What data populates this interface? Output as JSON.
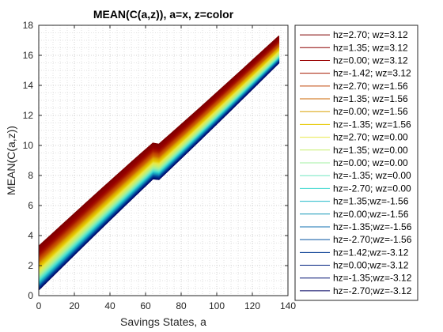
{
  "chart_data": {
    "type": "line",
    "title": "MEAN(C(a,z)), a=x, z=color",
    "xlabel": "Savings States, a",
    "ylabel": "MEAN(C(a,z))",
    "xlim": [
      0,
      140
    ],
    "ylim": [
      0,
      18
    ],
    "xticks": [
      0,
      20,
      40,
      60,
      80,
      100,
      120,
      140
    ],
    "yticks": [
      0,
      2,
      4,
      6,
      8,
      10,
      12,
      14,
      16,
      18
    ],
    "grid": "on (major and minor dotted)",
    "legend_position": "outside-right",
    "x_max_data": 135,
    "series": [
      {
        "name": "hz=2.70; wz=3.12",
        "color": "#7f0000",
        "values": [
          3.3,
          17.3
        ]
      },
      {
        "name": "hz=1.35; wz=3.12",
        "color": "#8b0000",
        "values": [
          3.1,
          17.15
        ]
      },
      {
        "name": "hz=0.00; wz=3.12",
        "color": "#990000",
        "values": [
          2.9,
          17.05
        ]
      },
      {
        "name": "hz=-1.42; wz=3.12",
        "color": "#a61a00",
        "values": [
          2.7,
          16.9
        ]
      },
      {
        "name": "hz=2.70; wz=1.56",
        "color": "#bf4000",
        "values": [
          2.5,
          16.8
        ]
      },
      {
        "name": "hz=1.35; wz=1.56",
        "color": "#cc6600",
        "values": [
          2.3,
          16.65
        ]
      },
      {
        "name": "hz=0.00; wz=1.56",
        "color": "#d9a000",
        "values": [
          2.1,
          16.55
        ]
      },
      {
        "name": "hz=-1.35; wz=1.56",
        "color": "#e6c800",
        "values": [
          1.9,
          16.4
        ]
      },
      {
        "name": "hz=2.70; wz=0.00",
        "color": "#e8e84a",
        "values": [
          1.7,
          16.3
        ]
      },
      {
        "name": "hz=1.35; wz=0.00",
        "color": "#c8f070",
        "values": [
          1.5,
          16.15
        ]
      },
      {
        "name": "hz=0.00; wz=0.00",
        "color": "#a0f0a0",
        "values": [
          1.3,
          16.05
        ]
      },
      {
        "name": "hz=-1.35; wz=0.00",
        "color": "#70e8c0",
        "values": [
          1.15,
          15.95
        ]
      },
      {
        "name": "hz=-2.70; wz=0.00",
        "color": "#40d8d0",
        "values": [
          1.0,
          15.9
        ]
      },
      {
        "name": "hz=1.35;wz=-1.56",
        "color": "#20b8c8",
        "values": [
          0.9,
          15.85
        ]
      },
      {
        "name": "hz=0.00;wz=-1.56",
        "color": "#1898b8",
        "values": [
          0.8,
          15.8
        ]
      },
      {
        "name": "hz=-1.35;wz=-1.56",
        "color": "#1070b0",
        "values": [
          0.72,
          15.75
        ]
      },
      {
        "name": "hz=-2.70;wz=-1.56",
        "color": "#0050a0",
        "values": [
          0.65,
          15.7
        ]
      },
      {
        "name": "hz=1.42;wz=-3.12",
        "color": "#003890",
        "values": [
          0.58,
          15.65
        ]
      },
      {
        "name": "hz=0.00;wz=-3.12",
        "color": "#002080",
        "values": [
          0.5,
          15.6
        ]
      },
      {
        "name": "hz=-1.35;wz=-3.12",
        "color": "#001070",
        "values": [
          0.44,
          15.55
        ]
      },
      {
        "name": "hz=-2.70;wz=-3.12",
        "color": "#000060",
        "values": [
          0.38,
          15.5
        ]
      }
    ]
  }
}
